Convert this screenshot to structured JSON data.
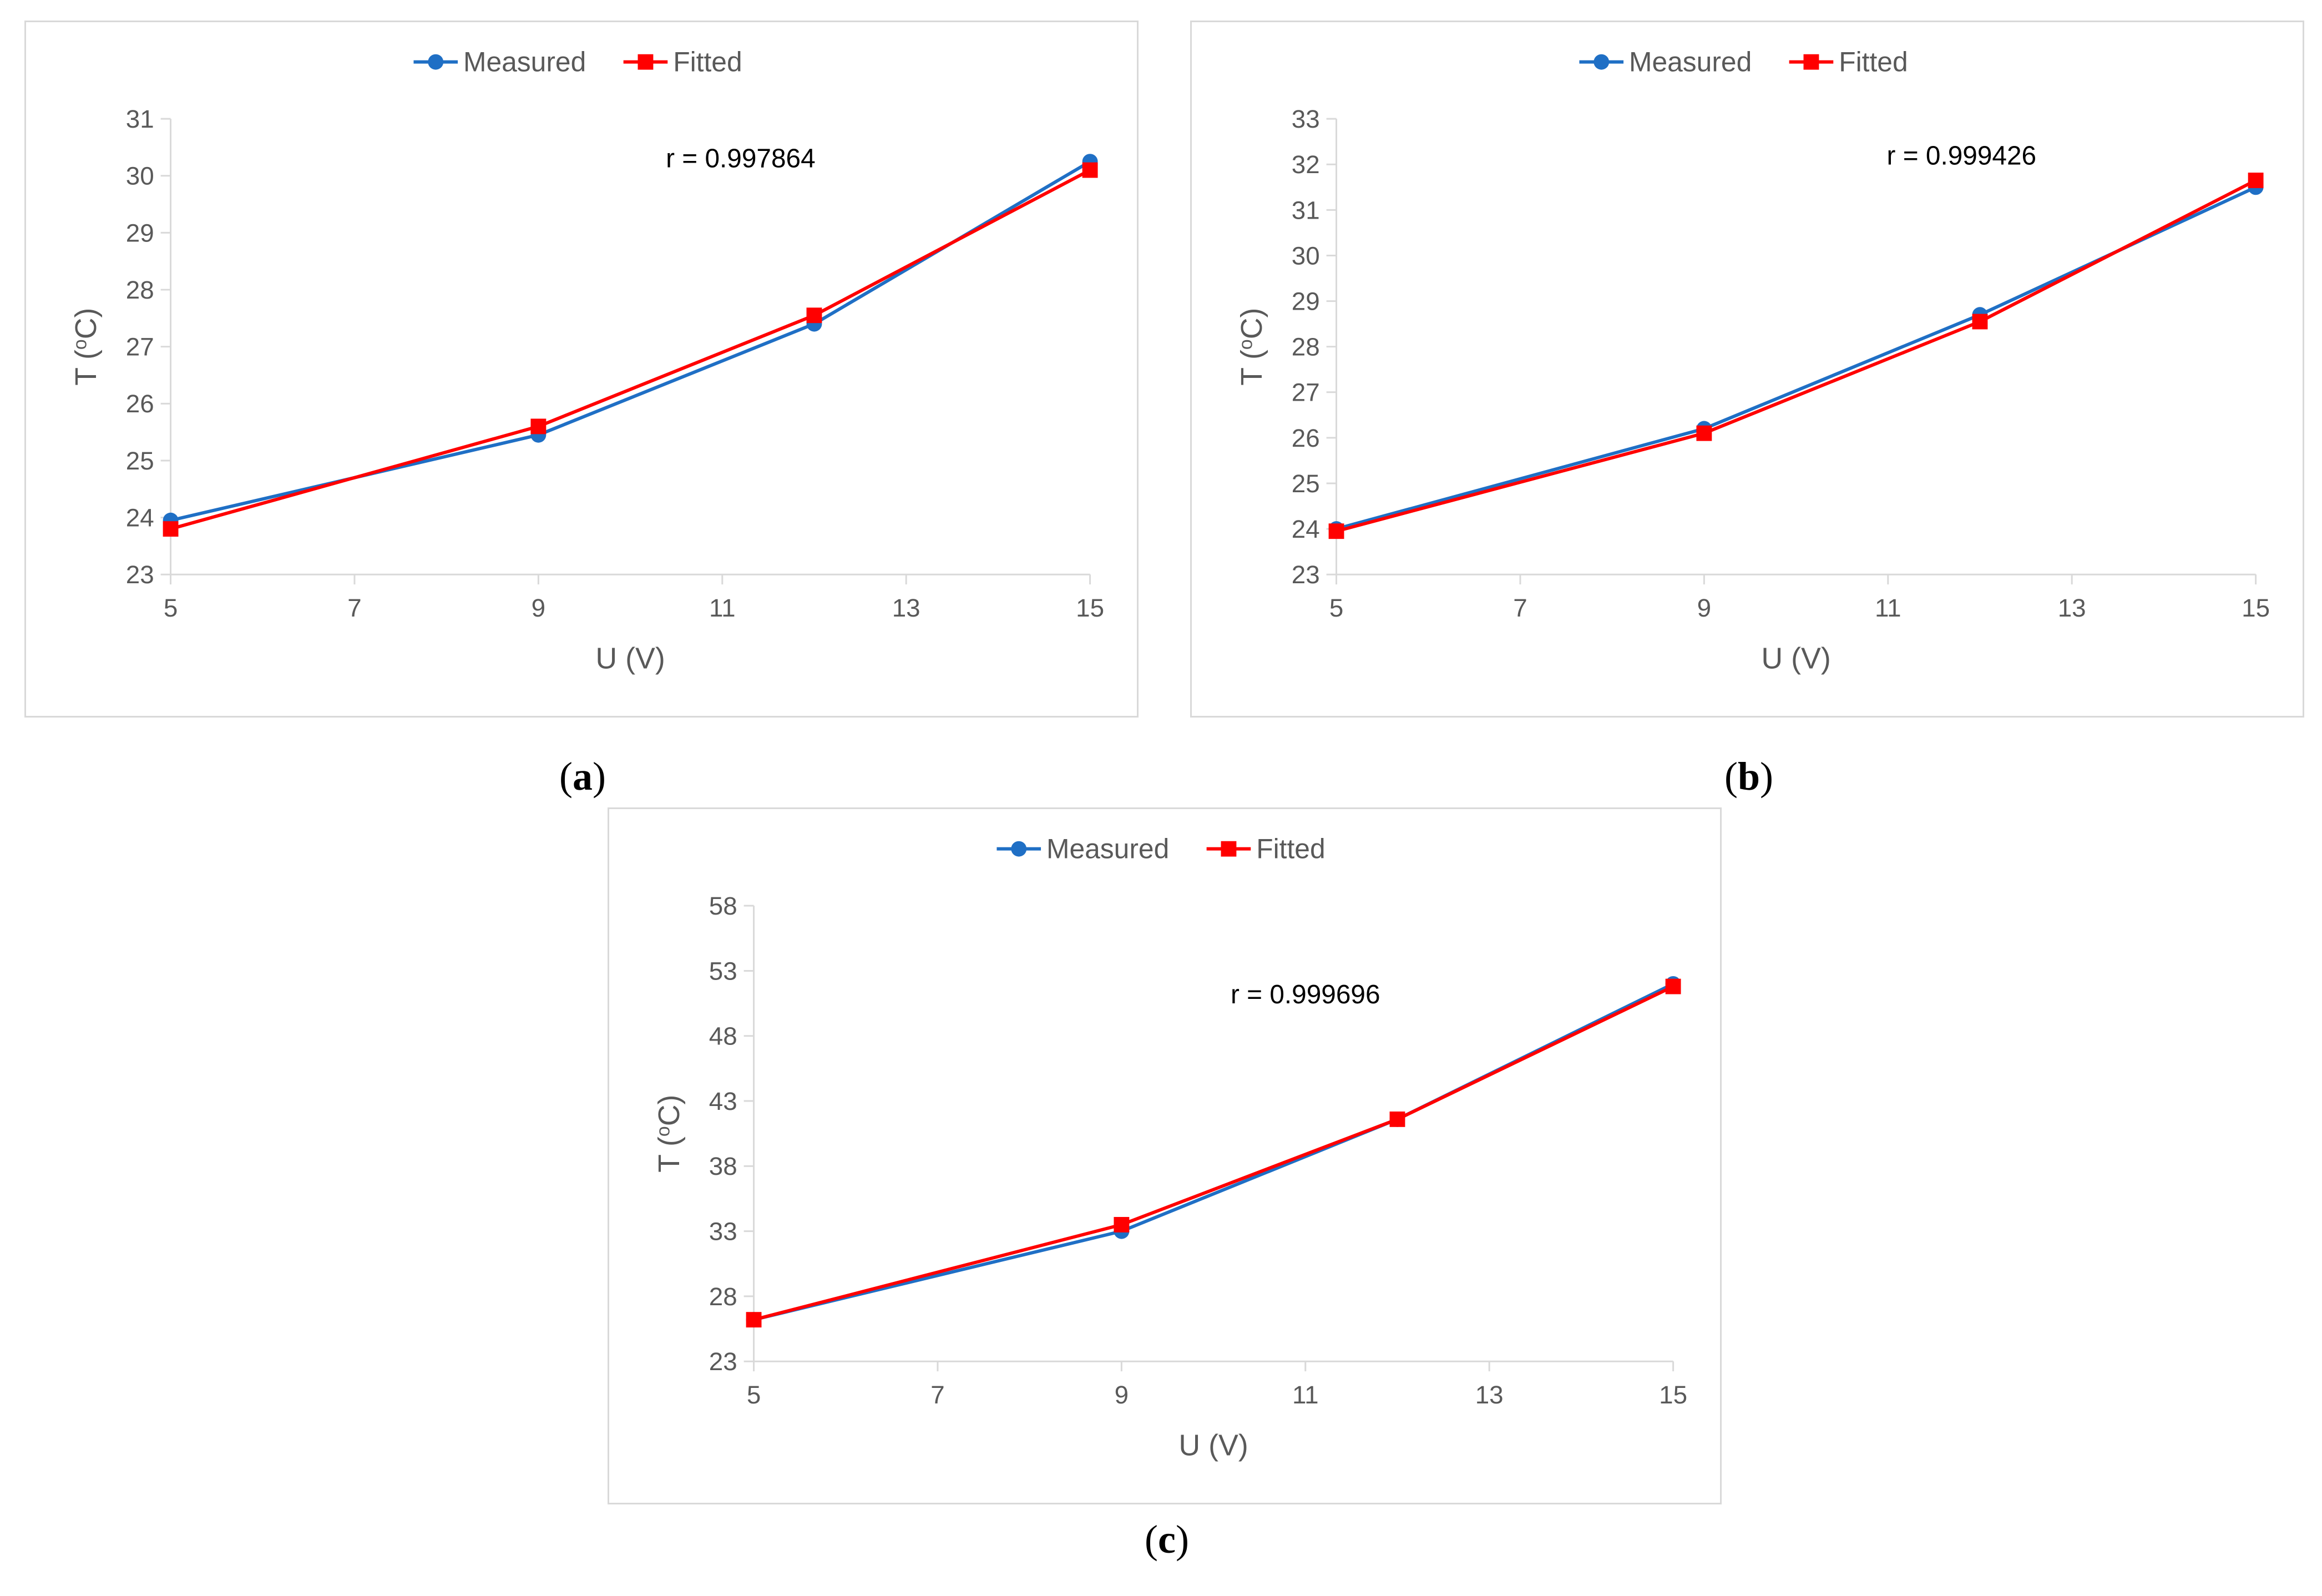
{
  "colors": {
    "measured": "#1f6fc5",
    "fitted": "#ff0000",
    "axis": "#d9d9d9",
    "text": "#595959"
  },
  "legend": {
    "measured": "Measured",
    "fitted": "Fitted"
  },
  "chart_data": [
    {
      "id": "a",
      "type": "line",
      "panel_label": {
        "open": "(",
        "letter": "a",
        "close": ")"
      },
      "xlabel": "U (V)",
      "ylabel_prefix": "T (",
      "ylabel_sup": "o",
      "ylabel_suffix": "C)",
      "xlim": [
        5,
        15
      ],
      "ylim": [
        23,
        31
      ],
      "xticks": [
        5,
        7,
        9,
        11,
        13,
        15
      ],
      "yticks": [
        23,
        24,
        25,
        26,
        27,
        28,
        29,
        30,
        31
      ],
      "annotation": {
        "text": "r = 0.997864",
        "x": 11.2,
        "y": 30.15
      },
      "x": [
        5,
        9,
        12,
        15
      ],
      "series": [
        {
          "name": "Measured",
          "marker": "circle",
          "values": [
            23.95,
            25.45,
            27.4,
            30.25
          ]
        },
        {
          "name": "Fitted",
          "marker": "square",
          "values": [
            23.8,
            25.6,
            27.55,
            30.1
          ]
        }
      ]
    },
    {
      "id": "b",
      "type": "line",
      "panel_label": {
        "open": "(",
        "letter": "b",
        "close": ")"
      },
      "xlabel": "U (V)",
      "ylabel_prefix": "T (",
      "ylabel_sup": "o",
      "ylabel_suffix": "C)",
      "xlim": [
        5,
        15
      ],
      "ylim": [
        23,
        33
      ],
      "xticks": [
        5,
        7,
        9,
        11,
        13,
        15
      ],
      "yticks": [
        23,
        24,
        25,
        26,
        27,
        28,
        29,
        30,
        31,
        32,
        33
      ],
      "annotation": {
        "text": "r = 0.999426",
        "x": 11.8,
        "y": 32.0
      },
      "x": [
        5,
        9,
        12,
        15
      ],
      "series": [
        {
          "name": "Measured",
          "marker": "circle",
          "values": [
            24.0,
            26.2,
            28.7,
            31.5
          ]
        },
        {
          "name": "Fitted",
          "marker": "square",
          "values": [
            23.95,
            26.1,
            28.55,
            31.65
          ]
        }
      ]
    },
    {
      "id": "c",
      "type": "line",
      "panel_label": {
        "open": "(",
        "letter": "c",
        "close": ")"
      },
      "xlabel": "U (V)",
      "ylabel_prefix": "T (",
      "ylabel_sup": "o",
      "ylabel_suffix": "C)",
      "xlim": [
        5,
        15
      ],
      "ylim": [
        23,
        58
      ],
      "xticks": [
        5,
        7,
        9,
        11,
        13,
        15
      ],
      "yticks": [
        23,
        28,
        33,
        38,
        43,
        48,
        53,
        58
      ],
      "annotation": {
        "text": "r = 0.999696",
        "x": 11.0,
        "y": 50.5
      },
      "x": [
        5,
        9,
        12,
        15
      ],
      "series": [
        {
          "name": "Measured",
          "marker": "circle",
          "values": [
            26.2,
            33.0,
            41.6,
            52.0
          ]
        },
        {
          "name": "Fitted",
          "marker": "square",
          "values": [
            26.2,
            33.5,
            41.6,
            51.8
          ]
        }
      ]
    }
  ]
}
